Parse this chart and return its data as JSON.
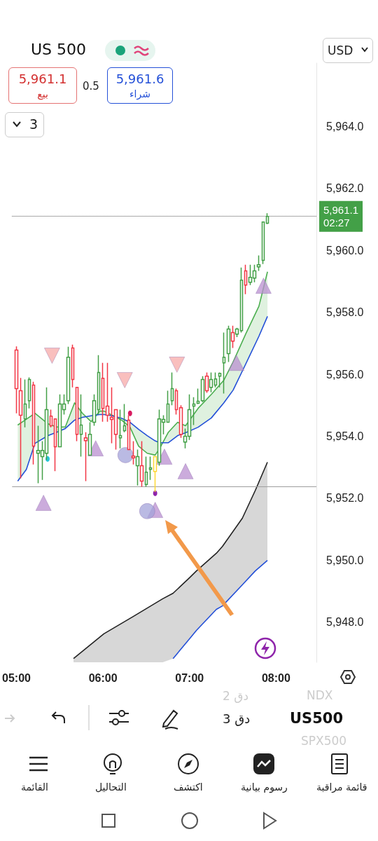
{
  "chart_data": {
    "type": "candlestick",
    "xlim": [
      4.95,
      8.466
    ],
    "xticks": [
      {
        "value": 5,
        "label": "05:00"
      },
      {
        "value": 6,
        "label": "06:00"
      },
      {
        "value": 7,
        "label": "07:00"
      },
      {
        "value": 8,
        "label": "08:00"
      }
    ],
    "ylim": [
      5946.7,
      5966.05
    ],
    "yticks": [
      {
        "value": 5948,
        "label": "5,948.0"
      },
      {
        "value": 5950,
        "label": "5,950.0"
      },
      {
        "value": 5952,
        "label": "5,952.0"
      },
      {
        "value": 5954,
        "label": "5,954.0"
      },
      {
        "value": 5956,
        "label": "5,956.0"
      },
      {
        "value": 5958,
        "label": "5,958.0"
      },
      {
        "value": 5960,
        "label": "5,960.0"
      },
      {
        "value": 5962,
        "label": "5,962.0"
      },
      {
        "value": 5964,
        "label": "5,964.0"
      }
    ],
    "series": [
      {
        "colors": [
          "#f23645",
          "#f23645",
          "#43a047",
          "#43a047",
          "#f23645",
          "#43a047",
          "#43a047",
          "#43a047",
          "#f23645",
          "#f23645",
          "#43a047",
          "#43a047",
          "#43a047",
          "#f23645",
          "#f23645",
          "#43a047",
          "#f23645",
          "#43a047",
          "#43a047",
          "#43a047",
          "#f23645",
          "#f23645",
          "#f23645",
          "#f23645",
          "#43a047",
          "#43a047",
          "#f23645",
          "#f23645",
          "#43a047",
          "#f23645",
          "#43a047",
          "#43a047",
          "#fdd835",
          "#43a047",
          "#43a047",
          "#43a047",
          "#43a047",
          "#f23645",
          "#f23645",
          "#43a047",
          "#43a047",
          "#43a047",
          "#43a047",
          "#43a047",
          "#f23645",
          "#43a047",
          "#43a047",
          "#43a047",
          "#43a047",
          "#43a047",
          "#f23645",
          "#43a047",
          "#43a047",
          "#f23645",
          "#43a047",
          "#43a047",
          "#43a047",
          "#43a047",
          "#43a047"
        ],
        "x": [
          5,
          5.05,
          5.1,
          5.15,
          5.2,
          5.25,
          5.3,
          5.35,
          5.4,
          5.45,
          5.5,
          5.55,
          5.6,
          5.65,
          5.7,
          5.75,
          5.8,
          5.85,
          5.9,
          5.95,
          6,
          6.05,
          6.1,
          6.15,
          6.2,
          6.25,
          6.3,
          6.35,
          6.4,
          6.45,
          6.5,
          6.55,
          6.6,
          6.65,
          6.7,
          6.75,
          6.8,
          6.85,
          6.9,
          6.95,
          7,
          7.05,
          7.1,
          7.15,
          7.2,
          7.25,
          7.3,
          7.35,
          7.4,
          7.45,
          7.5,
          7.55,
          7.6,
          7.65,
          7.7,
          7.75,
          7.8,
          7.85,
          7.9
        ],
        "ohlc": [
          [
            5956.78,
            5956.9,
            5954.74,
            5955.54
          ],
          [
            5955.47,
            5955.88,
            5952.64,
            5954.68
          ],
          [
            5954.56,
            5955.83,
            5954.29,
            5955.04
          ],
          [
            5955.15,
            5955.9,
            5954.9,
            5955.83
          ],
          [
            5955.65,
            5955.76,
            5953.09,
            5953.68
          ],
          [
            5953.45,
            5954.34,
            5952.48,
            5953.54
          ],
          [
            5953.34,
            5953.84,
            5952.59,
            5953.54
          ],
          [
            5953.45,
            5955.58,
            5953.23,
            5954.86
          ],
          [
            5954.65,
            5954.86,
            5954.29,
            5954.34
          ],
          [
            5954.56,
            5954.56,
            5952.87,
            5953.66
          ],
          [
            5953.66,
            5955.35,
            5953.66,
            5955.04
          ],
          [
            5954.86,
            5955.35,
            5954.7,
            5955.04
          ],
          [
            5955.15,
            5956.89,
            5955.04,
            5956.55
          ],
          [
            5956.85,
            5956.96,
            5955.58,
            5955.83
          ],
          [
            5955.58,
            5955.58,
            5953.84,
            5954.06
          ],
          [
            5954.06,
            5955.35,
            5953.34,
            5954.36
          ],
          [
            5953.95,
            5954.13,
            5952.55,
            5953.86
          ],
          [
            5953.39,
            5954.45,
            5953.39,
            5954.06
          ],
          [
            5954.45,
            5955.35,
            5954.34,
            5955.15
          ],
          [
            5954.86,
            5956.62,
            5954.7,
            5956.06
          ],
          [
            5955.87,
            5956.37,
            5954.47,
            5954.9
          ],
          [
            5954.97,
            5956.37,
            5954.47,
            5954.68
          ],
          [
            5954.61,
            5955.58,
            5953.77,
            5954.54
          ],
          [
            5954.86,
            5954.86,
            5953.57,
            5954.06
          ],
          [
            5953.95,
            5954.86,
            5953.61,
            5954.02
          ],
          [
            5954.18,
            5955.04,
            5954.13,
            5954.34
          ],
          [
            5954.52,
            5954.68,
            5953.57,
            5953.57
          ],
          [
            5953.36,
            5953.84,
            5953.09,
            5953.3
          ],
          [
            5953.05,
            5953.57,
            5952.41,
            5953.34
          ],
          [
            5953.05,
            5953.84,
            5952.37,
            5952.55
          ],
          [
            5952.44,
            5953.34,
            5952.37,
            5952.84
          ],
          [
            5952.93,
            5953.34,
            5952.59,
            5952.98
          ],
          [
            5953.34,
            5953.34,
            5952.2,
            5952.86
          ],
          [
            5953.16,
            5954.86,
            5953.05,
            5954.56
          ],
          [
            5954.45,
            5954.68,
            5954.06,
            5954.54
          ],
          [
            5954.45,
            5955.47,
            5954.45,
            5955.04
          ],
          [
            5955.15,
            5956.06,
            5955.0,
            5955.54
          ],
          [
            5955.47,
            5955.54,
            5954.7,
            5954.86
          ],
          [
            5954.92,
            5955.0,
            5953.95,
            5954.06
          ],
          [
            5953.81,
            5954.25,
            5953.61,
            5954.0
          ],
          [
            5954.0,
            5955.35,
            5953.88,
            5954.86
          ],
          [
            5954.97,
            5955.26,
            5954.36,
            5955.04
          ],
          [
            5955.06,
            5955.54,
            5955.04,
            5955.13
          ],
          [
            5955.15,
            5955.94,
            5955.1,
            5955.83
          ],
          [
            5955.94,
            5956.06,
            5955.4,
            5955.47
          ],
          [
            5955.58,
            5956.06,
            5955.42,
            5955.83
          ],
          [
            5955.65,
            5956.06,
            5955.58,
            5955.85
          ],
          [
            5955.94,
            5956.06,
            5955.58,
            5956.03
          ],
          [
            5956.37,
            5957.35,
            5955.38,
            5956.55
          ],
          [
            5956.67,
            5957.57,
            5956.4,
            5957.46
          ],
          [
            5957.35,
            5957.57,
            5956.85,
            5957.07
          ],
          [
            5957.3,
            5957.5,
            5957.2,
            5957.46
          ],
          [
            5957.41,
            5959.45,
            5957.35,
            5959.04
          ],
          [
            5959.34,
            5959.54,
            5958.59,
            5958.88
          ],
          [
            5958.97,
            5959.54,
            5958.88,
            5959.13
          ],
          [
            5959.11,
            5959.54,
            5958.97,
            5959.34
          ],
          [
            5959.47,
            5959.84,
            5959.34,
            5959.54
          ],
          [
            5959.68,
            5960.92,
            5959.56,
            5960.92
          ],
          [
            5960.88,
            5961.2,
            5960.85,
            5961.1
          ]
        ]
      },
      {
        "type": "line",
        "color": "#4caf50",
        "x": [
          5.015,
          5.115,
          5.214,
          5.366,
          5.466,
          5.565,
          5.672,
          5.763,
          5.863,
          5.962,
          6.015,
          6.107,
          6.214,
          6.313,
          6.412,
          6.511,
          6.603,
          6.656,
          6.756,
          6.863,
          6.954,
          7.099,
          7.252,
          7.397,
          7.504,
          7.649,
          7.802,
          7.901
        ],
        "values": [
          5954.36,
          5954.55,
          5954.74,
          5954.4,
          5954.3,
          5954.3,
          5955.08,
          5954.74,
          5954.47,
          5954.81,
          5954.81,
          5954.68,
          5954.52,
          5954.29,
          5953.68,
          5953.45,
          5953.39,
          5953.61,
          5954.13,
          5954.45,
          5954.34,
          5954.9,
          5955.35,
          5955.81,
          5956.4,
          5957.3,
          5958.2,
          5959.31
        ],
        "lower": [
          5952.55,
          5952.93,
          5953.77,
          5954.02,
          5954.13,
          5954.25,
          5954.52,
          5954.61,
          5954.66,
          5954.7,
          5954.7,
          5954.66,
          5954.58,
          5954.45,
          5954.22,
          5954.02,
          5953.85,
          5953.79,
          5953.79,
          5954.02,
          5954.11,
          5954.29,
          5954.59,
          5955.08,
          5955.49,
          5956.33,
          5957.23,
          5957.87
        ],
        "upper": [
          5954.36,
          5954.55,
          5954.74,
          5954.4,
          5954.3,
          5954.3,
          5955.08,
          5954.74,
          5954.47,
          5954.81,
          5954.81,
          5954.68,
          5954.52,
          5954.29,
          5953.68,
          5953.45,
          5953.39,
          5953.61,
          5954.13,
          5954.45,
          5954.34,
          5954.9,
          5955.35,
          5955.81,
          5956.4,
          5957.3,
          5958.2,
          5959.31
        ]
      },
      {
        "type": "line",
        "color": "#2450d8",
        "x": [
          5.015,
          5.115,
          5.214,
          5.366,
          5.466,
          5.565,
          5.672,
          5.763,
          5.863,
          5.962,
          6.015,
          6.107,
          6.214,
          6.313,
          6.412,
          6.511,
          6.603,
          6.656,
          6.756,
          6.863,
          6.954,
          7.099,
          7.252,
          7.397,
          7.504,
          7.649,
          7.802,
          7.901
        ],
        "values": [
          5952.55,
          5952.93,
          5953.77,
          5954.02,
          5954.13,
          5954.25,
          5954.52,
          5954.61,
          5954.66,
          5954.7,
          5954.7,
          5954.66,
          5954.58,
          5954.45,
          5954.22,
          5954.02,
          5953.85,
          5953.79,
          5953.79,
          5954.02,
          5954.11,
          5954.29,
          5954.59,
          5955.08,
          5955.49,
          5956.33,
          5957.23,
          5957.87
        ]
      },
      {
        "type": "line",
        "color": "#222222",
        "x": [
          5.66,
          6.01,
          6.35,
          6.69,
          6.81,
          7.0,
          7.08,
          7.31,
          7.38,
          7.61,
          7.76,
          7.9
        ],
        "values": [
          5946.82,
          5947.62,
          5948.18,
          5948.75,
          5948.93,
          5949.43,
          5949.65,
          5950.22,
          5950.44,
          5951.35,
          5952.25,
          5953.16
        ],
        "lower": [
          5946.7,
          5946.7,
          5946.7,
          5946.7,
          5946.82,
          5947.46,
          5947.73,
          5948.41,
          5948.52,
          5949.2,
          5949.65,
          5949.99
        ],
        "upper": [
          5946.82,
          5947.62,
          5948.18,
          5948.75,
          5948.93,
          5949.43,
          5949.65,
          5950.22,
          5950.44,
          5951.35,
          5952.25,
          5953.16
        ]
      },
      {
        "type": "line",
        "color": "#2450d8",
        "x": [
          6.81,
          7.0,
          7.08,
          7.31,
          7.38,
          7.61,
          7.76,
          7.9
        ],
        "values": [
          5946.82,
          5947.46,
          5947.73,
          5948.41,
          5948.52,
          5949.2,
          5949.65,
          5949.99
        ]
      },
      {
        "type": "scatter",
        "marker": "triangle",
        "color": "#b98fd0",
        "x": [
          5.313,
          5.916,
          6.603,
          6.71,
          6.954,
          7.542,
          7.855
        ],
        "values": [
          5951.85,
          5953.61,
          5951.62,
          5953.34,
          5952.87,
          5956.37,
          5958.86
        ]
      },
      {
        "type": "scatter",
        "marker": "triangle-down",
        "color": "#f7a9a8",
        "x": [
          5.412,
          6.252,
          6.855
        ],
        "values": [
          5956.6,
          5955.81,
          5956.31
        ]
      },
      {
        "type": "scatter",
        "marker": "circle",
        "color": "#a3a3d9",
        "x": [
          6.26,
          6.511
        ],
        "values": [
          5953.39,
          5951.58
        ]
      },
      {
        "type": "scatter",
        "marker": "circle",
        "colors": [
          "#d81b60",
          "#8e24aa",
          "#26c6da"
        ],
        "x": [
          6.313,
          6.603,
          5.36
        ],
        "values": [
          5954.74,
          5952.16,
          5953.27
        ]
      }
    ],
    "ref_lines": [
      {
        "axis": "y",
        "value": 5961.1,
        "label": "5,961.1\n02:27",
        "line_style": "dotted",
        "color": "#555555"
      },
      {
        "axis": "y",
        "value": 5952.37,
        "line_style": "solid",
        "color": "#9e9e9e"
      }
    ],
    "annotations": [
      "US 500",
      "5,961.1",
      "بيع",
      "0.5",
      "5,961.6",
      "شراء",
      "USD",
      "3",
      "2 دق",
      "3 دق",
      "NDX",
      "US500",
      "SPX500",
      "القائمة",
      "التحاليل",
      "اكتشف",
      "رسوم بيانية",
      "قائمة مراقبة"
    ]
  }
}
